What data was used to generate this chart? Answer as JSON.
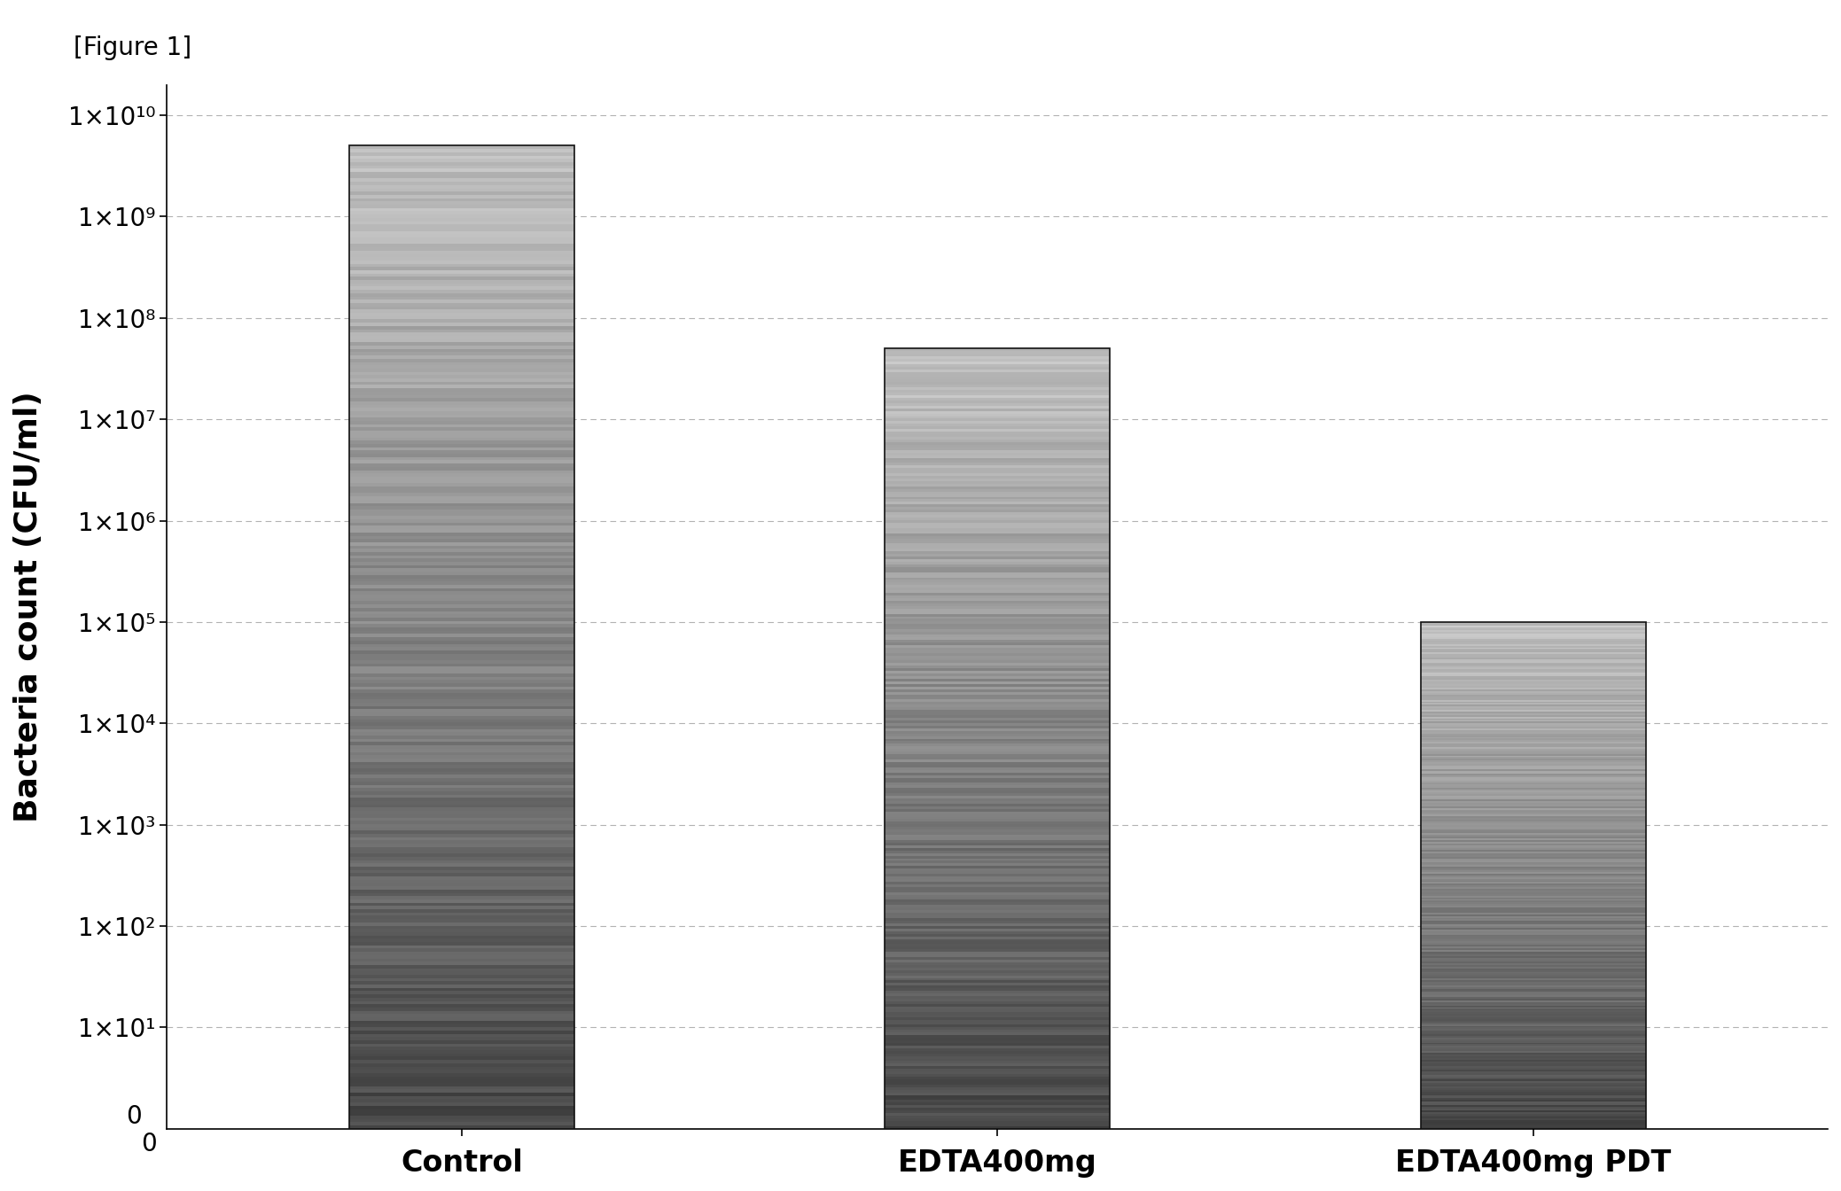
{
  "categories": [
    "Control",
    "EDTA400mg",
    "EDTA400mg PDT"
  ],
  "values": [
    5000000000.0,
    50000000.0,
    100000.0
  ],
  "title": "[Figure 1]",
  "ylabel": "Bacteria count (CFU/ml)",
  "background_color": "#ffffff",
  "grid_color": "#aaaaaa",
  "bar_width": 0.42,
  "bar_left_color": "#888888",
  "bar_right_color": "#222222",
  "ytick_values": [
    10,
    100,
    1000,
    10000,
    100000,
    1000000,
    10000000,
    100000000,
    1000000000,
    10000000000
  ],
  "ytick_labels": [
    "1×10¹",
    "1×10²",
    "1×10³",
    "1×10⁴",
    "1×10⁵",
    "1×10⁶",
    "1×10⁷",
    "1×10⁸",
    "1×10⁹",
    "1×10¹⁰"
  ],
  "xlim": [
    -0.55,
    2.55
  ],
  "ylim_top": 20000000000.0,
  "title_fontsize": 20,
  "ylabel_fontsize": 26,
  "xtick_fontsize": 24,
  "ytick_fontsize": 20
}
